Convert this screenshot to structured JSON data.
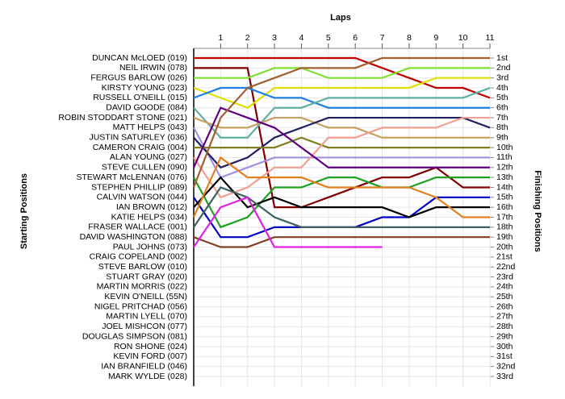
{
  "chart_data": {
    "type": "line",
    "title": "Laps",
    "y_label": "Starting Positions",
    "y2_label": "Finishing Positions",
    "x": [
      0,
      1,
      2,
      3,
      4,
      5,
      6,
      7,
      8,
      9,
      10,
      11
    ],
    "xlim": [
      0,
      11
    ],
    "xticks": [
      1,
      2,
      3,
      4,
      5,
      6,
      7,
      8,
      9,
      10,
      11
    ],
    "ylim": [
      1,
      33
    ],
    "y_inverted": true,
    "grid": true,
    "yticks": [
      {
        "value": 1,
        "label": "DUNCAN McLOED (019)"
      },
      {
        "value": 2,
        "label": "NEIL IRWIN (078)"
      },
      {
        "value": 3,
        "label": "FERGUS BARLOW (026)"
      },
      {
        "value": 4,
        "label": "KIRSTY YOUNG (023)"
      },
      {
        "value": 5,
        "label": "RUSSELL O'NEILL (015)"
      },
      {
        "value": 6,
        "label": "DAVID GOODE (084)"
      },
      {
        "value": 7,
        "label": "ROBIN STODDART STONE (021)"
      },
      {
        "value": 8,
        "label": "MATT HELPS (043)"
      },
      {
        "value": 9,
        "label": "JUSTIN SATURLEY (036)"
      },
      {
        "value": 10,
        "label": "CAMERON CRAIG (004)"
      },
      {
        "value": 11,
        "label": "ALAN YOUNG (027)"
      },
      {
        "value": 12,
        "label": "STEVE CULLEN (090)"
      },
      {
        "value": 13,
        "label": "STEWART McLENNAN (076)"
      },
      {
        "value": 14,
        "label": "STEPHEN PHILLIP (089)"
      },
      {
        "value": 15,
        "label": "CALVIN WATSON (044)"
      },
      {
        "value": 16,
        "label": "IAN BROWN (012)"
      },
      {
        "value": 17,
        "label": "KATIE HELPS (034)"
      },
      {
        "value": 18,
        "label": "FRASER WALLACE (001)"
      },
      {
        "value": 19,
        "label": "DAVID WASHINGTON (088)"
      },
      {
        "value": 20,
        "label": "PAUL JOHNS (073)"
      },
      {
        "value": 21,
        "label": "CRAIG COPELAND (002)"
      },
      {
        "value": 22,
        "label": "STEVE BARLOW (010)"
      },
      {
        "value": 23,
        "label": "STUART GRAY (020)"
      },
      {
        "value": 24,
        "label": "MARTIN MORRIS (022)"
      },
      {
        "value": 25,
        "label": "KEVIN O'NEILL (55N)"
      },
      {
        "value": 26,
        "label": "NIGEL PRITCHAD (056)"
      },
      {
        "value": 27,
        "label": "MARTIN LYELL (070)"
      },
      {
        "value": 28,
        "label": "JOEL MISHCON (077)"
      },
      {
        "value": 29,
        "label": "DOUGLAS SIMPSON (081)"
      },
      {
        "value": 30,
        "label": "RON SHONE (024)"
      },
      {
        "value": 31,
        "label": "KEVIN FORD (007)"
      },
      {
        "value": 32,
        "label": "IAN BRANFIELD (046)"
      },
      {
        "value": 33,
        "label": "MARK WYLDE (028)"
      }
    ],
    "y2lim": [
      1,
      33
    ],
    "y2ticks": [
      {
        "value": 1,
        "label": "1st"
      },
      {
        "value": 2,
        "label": "2nd"
      },
      {
        "value": 3,
        "label": "3rd"
      },
      {
        "value": 4,
        "label": "4th"
      },
      {
        "value": 5,
        "label": "5th"
      },
      {
        "value": 6,
        "label": "6th"
      },
      {
        "value": 7,
        "label": "7th"
      },
      {
        "value": 8,
        "label": "8th"
      },
      {
        "value": 9,
        "label": "9th"
      },
      {
        "value": 10,
        "label": "10th"
      },
      {
        "value": 11,
        "label": "11th"
      },
      {
        "value": 12,
        "label": "12th"
      },
      {
        "value": 13,
        "label": "13th"
      },
      {
        "value": 14,
        "label": "14th"
      },
      {
        "value": 15,
        "label": "15th"
      },
      {
        "value": 16,
        "label": "16th"
      },
      {
        "value": 17,
        "label": "17th"
      },
      {
        "value": 18,
        "label": "18th"
      },
      {
        "value": 19,
        "label": "19th"
      },
      {
        "value": 20,
        "label": "20th"
      },
      {
        "value": 21,
        "label": "21st"
      },
      {
        "value": 22,
        "label": "22nd"
      },
      {
        "value": 23,
        "label": "23rd"
      },
      {
        "value": 24,
        "label": "24th"
      },
      {
        "value": 25,
        "label": "25th"
      },
      {
        "value": 26,
        "label": "26th"
      },
      {
        "value": 27,
        "label": "27th"
      },
      {
        "value": 28,
        "label": "28th"
      },
      {
        "value": 29,
        "label": "29th"
      },
      {
        "value": 30,
        "label": "30th"
      },
      {
        "value": 31,
        "label": "31st"
      },
      {
        "value": 32,
        "label": "32nd"
      },
      {
        "value": 33,
        "label": "33rd"
      }
    ],
    "series": [
      {
        "color": "#c00000",
        "values": [
          1,
          1,
          1,
          1,
          1,
          1,
          1,
          2,
          3,
          4,
          4,
          5
        ]
      },
      {
        "color": "#800000",
        "values": [
          2,
          2,
          2,
          16,
          16,
          15,
          14,
          13,
          13,
          12,
          14,
          14
        ]
      },
      {
        "color": "#80e030",
        "values": [
          3,
          3,
          3,
          2,
          2,
          3,
          3,
          3,
          2,
          2,
          2,
          2
        ]
      },
      {
        "color": "#e0e000",
        "values": [
          4,
          5,
          6,
          4,
          4,
          4,
          4,
          4,
          4,
          3,
          3,
          3
        ]
      },
      {
        "color": "#2080e0",
        "values": [
          5,
          4,
          4,
          5,
          5,
          6,
          6,
          6,
          6,
          6,
          6,
          6
        ]
      },
      {
        "color": "#60b0a0",
        "values": [
          6,
          9,
          9,
          6,
          6,
          5,
          5,
          5,
          5,
          5,
          5,
          4
        ]
      },
      {
        "color": "#c8a060",
        "values": [
          7,
          8,
          8,
          7,
          7,
          8,
          8,
          9,
          9,
          9,
          9,
          9
        ]
      },
      {
        "color": "#a090e0",
        "values": [
          8,
          13,
          12,
          11,
          11,
          11,
          11,
          11,
          11,
          11,
          11,
          11
        ]
      },
      {
        "color": "#202060",
        "values": [
          9,
          12,
          11,
          9,
          8,
          7,
          7,
          7,
          7,
          7,
          7,
          8
        ]
      },
      {
        "color": "#808020",
        "values": [
          10,
          10,
          10,
          10,
          9,
          10,
          10,
          10,
          10,
          10,
          10,
          10
        ]
      },
      {
        "color": "#f0a090",
        "values": [
          11,
          15,
          14,
          12,
          12,
          9,
          9,
          8,
          8,
          8,
          7,
          7
        ]
      },
      {
        "color": "#600080",
        "values": [
          12,
          6,
          7,
          8,
          10,
          12,
          12,
          12,
          12,
          12,
          12,
          12
        ]
      },
      {
        "color": "#20a020",
        "values": [
          13,
          18,
          17,
          14,
          14,
          13,
          13,
          14,
          14,
          13,
          13,
          13
        ]
      },
      {
        "color": "#a06030",
        "values": [
          14,
          7,
          4,
          3,
          2,
          2,
          2,
          1,
          1,
          1,
          1,
          1
        ]
      },
      {
        "color": "#0000c0",
        "values": [
          15,
          19,
          19,
          18,
          18,
          18,
          18,
          17,
          17,
          15,
          15,
          15
        ]
      },
      {
        "color": "#000000",
        "values": [
          16,
          13,
          16,
          15,
          16,
          16,
          16,
          16,
          17,
          16,
          16,
          16
        ]
      },
      {
        "color": "#e08020",
        "values": [
          17,
          11,
          13,
          13,
          13,
          14,
          14,
          14,
          14,
          15,
          17,
          17
        ]
      },
      {
        "color": "#406060",
        "values": [
          18,
          14,
          15,
          17,
          18,
          18,
          18,
          18,
          18,
          18,
          18,
          18
        ]
      },
      {
        "color": "#804020",
        "values": [
          19,
          20,
          20,
          19,
          19,
          19,
          19,
          19,
          19,
          19,
          19,
          19
        ]
      },
      {
        "color": "#e020e0",
        "values": [
          20,
          16,
          15,
          20,
          20,
          20,
          20,
          20,
          null,
          null,
          null,
          null
        ]
      }
    ]
  }
}
